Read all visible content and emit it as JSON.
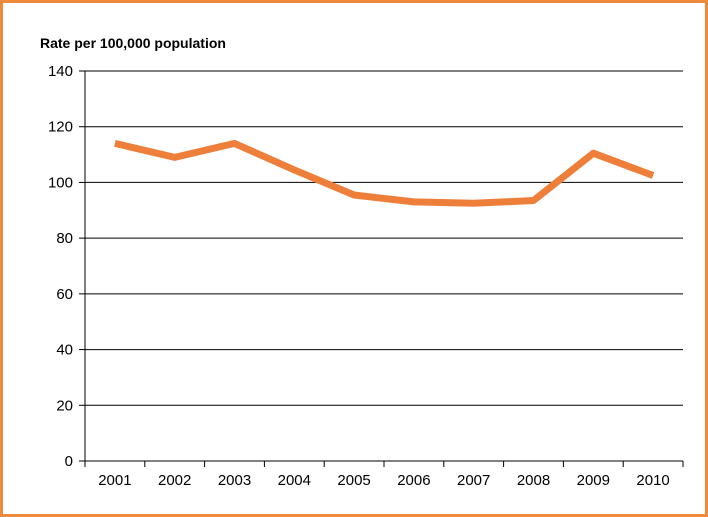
{
  "chart_data": {
    "type": "line",
    "title": "Rate per 100,000 population",
    "xlabel": "",
    "ylabel": "",
    "categories": [
      "2001",
      "2002",
      "2003",
      "2004",
      "2005",
      "2006",
      "2007",
      "2008",
      "2009",
      "2010"
    ],
    "series": [
      {
        "values": [
          114,
          109,
          114,
          104.5,
          95.5,
          93,
          92.5,
          93.5,
          110.5,
          102.5
        ]
      }
    ],
    "ylim": [
      0,
      140
    ],
    "yticks": [
      "0",
      "20",
      "40",
      "60",
      "80",
      "100",
      "120",
      "140"
    ],
    "grid": "horizontal",
    "legend": "none",
    "colors": {
      "line": "#ee7f3a",
      "frame": "#ee8a3c",
      "grid": "#000000"
    }
  }
}
